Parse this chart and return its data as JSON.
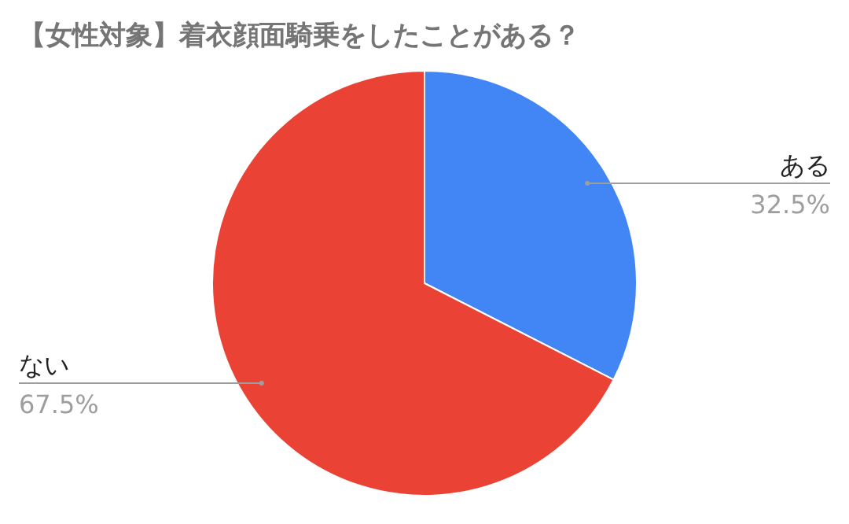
{
  "chart_data": {
    "type": "pie",
    "title": "【女性対象】着衣顔面騎乗をしたことがある？",
    "categories": [
      "ある",
      "ない"
    ],
    "values": [
      32.5,
      67.5
    ],
    "colors": [
      "#4285f4",
      "#ea4335"
    ],
    "value_labels": [
      "32.5%",
      "67.5%"
    ]
  }
}
